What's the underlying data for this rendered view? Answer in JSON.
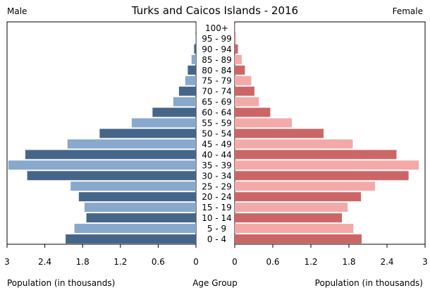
{
  "chart_data": {
    "type": "bar",
    "title": "Turks and Caicos Islands - 2016",
    "left_label": "Male",
    "right_label": "Female",
    "xlabel_left": "Population (in thousands)",
    "xlabel_center": "Age Group",
    "xlabel_right": "Population (in thousands)",
    "xlim": [
      0,
      3
    ],
    "ticks": [
      {
        "value": 3,
        "label": "3"
      },
      {
        "value": 2.4,
        "label": "2.4"
      },
      {
        "value": 1.8,
        "label": "1.8"
      },
      {
        "value": 1.2,
        "label": "1.2"
      },
      {
        "value": 0.6,
        "label": "0.6"
      },
      {
        "value": 0,
        "label": "0"
      }
    ],
    "right_ticks": [
      {
        "value": 0,
        "label": "0"
      },
      {
        "value": 0.6,
        "label": "0.6"
      },
      {
        "value": 1.2,
        "label": "1.2"
      },
      {
        "value": 1.8,
        "label": "1.8"
      },
      {
        "value": 2.4,
        "label": "2.4"
      },
      {
        "value": 3,
        "label": "3"
      }
    ],
    "categories": [
      "100+",
      "95 - 99",
      "90 - 94",
      "85 - 89",
      "80 - 84",
      "75 - 79",
      "70 - 74",
      "65 - 69",
      "60 - 64",
      "55 - 59",
      "50 - 54",
      "45 - 49",
      "40 - 44",
      "35 - 39",
      "30 - 34",
      "25 - 29",
      "20 - 24",
      "15 - 19",
      "10 - 14",
      "5 - 9",
      "0 - 4"
    ],
    "series": [
      {
        "name": "Male",
        "values": [
          0.005,
          0.01,
          0.03,
          0.07,
          0.13,
          0.17,
          0.27,
          0.36,
          0.69,
          1.02,
          1.53,
          2.04,
          2.71,
          2.98,
          2.68,
          1.99,
          1.86,
          1.77,
          1.74,
          1.93,
          2.07
        ]
      },
      {
        "name": "Female",
        "values": [
          0.005,
          0.02,
          0.05,
          0.11,
          0.16,
          0.26,
          0.31,
          0.38,
          0.56,
          0.9,
          1.4,
          1.86,
          2.55,
          2.9,
          2.74,
          2.21,
          1.99,
          1.78,
          1.69,
          1.87,
          2.0
        ]
      }
    ],
    "colors": {
      "male_dark": "#456688",
      "male_light": "#88a8cc",
      "female_dark": "#cc6666",
      "female_light": "#f4a9a9"
    },
    "legend": "none",
    "grid": false
  }
}
